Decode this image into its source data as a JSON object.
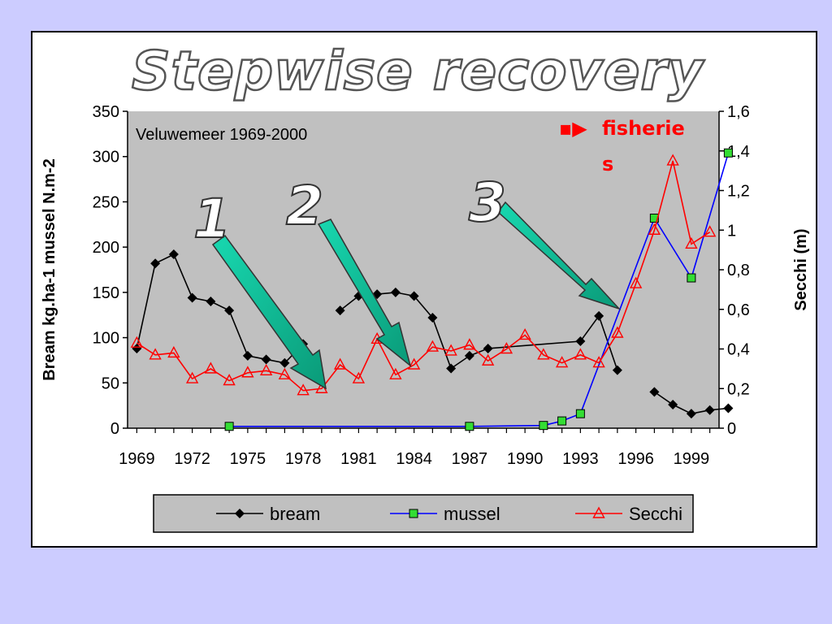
{
  "slide": {
    "title": "Stepwise recovery",
    "stages": [
      "1",
      "2",
      "3"
    ],
    "fisheries_marker": "▪▶",
    "fisheries_line1": "fisherie",
    "fisheries_line2": "s",
    "colors": {
      "background": "#ccccff",
      "arrow_fill": "#10c8a0"
    }
  },
  "chart_data": {
    "type": "line",
    "title": "",
    "annotation": "Veluwemeer  1969-2000",
    "ylabel": "Bream kg.ha-1 mussel N.m-2",
    "y2label": "Secchi  (m)",
    "ylim": [
      0,
      350
    ],
    "y2lim": [
      0,
      1.6
    ],
    "yticks": [
      "0",
      "50",
      "100",
      "150",
      "200",
      "250",
      "300",
      "350"
    ],
    "y2ticks": [
      "0",
      "0,2",
      "0,4",
      "0,6",
      "0,8",
      "1",
      "1,2",
      "1,4",
      "1,6"
    ],
    "xlim": [
      1968.5,
      2000.5
    ],
    "xticks": [
      "1969",
      "1972",
      "1975",
      "1978",
      "1981",
      "1984",
      "1987",
      "1990",
      "1993",
      "1996",
      "1999"
    ],
    "plot_background": "#c0c0c0",
    "grid": false,
    "legend_position": "bottom",
    "series": [
      {
        "name": "bream",
        "axis": "left",
        "color": "#000000",
        "marker": "diamond",
        "points": [
          [
            1969,
            88
          ],
          [
            1970,
            182
          ],
          [
            1971,
            192
          ],
          [
            1972,
            144
          ],
          [
            1973,
            140
          ],
          [
            1974,
            130
          ],
          [
            1975,
            80
          ],
          [
            1976,
            76
          ],
          [
            1977,
            72
          ],
          [
            1978,
            93
          ],
          [
            1979,
            null
          ],
          [
            1980,
            130
          ],
          [
            1981,
            146
          ],
          [
            1982,
            148
          ],
          [
            1983,
            150
          ],
          [
            1984,
            146
          ],
          [
            1985,
            122
          ],
          [
            1986,
            66
          ],
          [
            1987,
            80
          ],
          [
            1988,
            88
          ],
          [
            1993,
            96
          ],
          [
            1994,
            124
          ],
          [
            1995,
            64
          ],
          [
            1996,
            null
          ],
          [
            1997,
            40
          ],
          [
            1998,
            26
          ],
          [
            1999,
            16
          ],
          [
            2000,
            20
          ],
          [
            2001,
            22
          ]
        ]
      },
      {
        "name": "mussel",
        "axis": "left",
        "color": "#0000ff",
        "marker": "square",
        "marker_fill": "#33dd33",
        "points": [
          [
            1974,
            2
          ],
          [
            1987,
            2
          ],
          [
            1991,
            3
          ],
          [
            1992,
            8
          ],
          [
            1993,
            16
          ],
          [
            1997,
            232
          ],
          [
            1999,
            166
          ],
          [
            2001,
            304
          ]
        ]
      },
      {
        "name": "Secchi",
        "axis": "right",
        "color": "#ff0000",
        "marker": "triangle",
        "points": [
          [
            1969,
            0.43
          ],
          [
            1970,
            0.37
          ],
          [
            1971,
            0.38
          ],
          [
            1972,
            0.25
          ],
          [
            1973,
            0.3
          ],
          [
            1974,
            0.24
          ],
          [
            1975,
            0.28
          ],
          [
            1976,
            0.29
          ],
          [
            1977,
            0.27
          ],
          [
            1978,
            0.19
          ],
          [
            1979,
            0.2
          ],
          [
            1980,
            0.32
          ],
          [
            1981,
            0.25
          ],
          [
            1982,
            0.45
          ],
          [
            1983,
            0.27
          ],
          [
            1984,
            0.32
          ],
          [
            1985,
            0.41
          ],
          [
            1986,
            0.39
          ],
          [
            1987,
            0.42
          ],
          [
            1988,
            0.34
          ],
          [
            1989,
            0.4
          ],
          [
            1990,
            0.47
          ],
          [
            1991,
            0.37
          ],
          [
            1992,
            0.33
          ],
          [
            1993,
            0.37
          ],
          [
            1994,
            0.33
          ],
          [
            1995,
            0.48
          ],
          [
            1996,
            0.73
          ],
          [
            1997,
            1.0
          ],
          [
            1998,
            1.35
          ],
          [
            1999,
            0.93
          ],
          [
            2000,
            0.99
          ]
        ]
      }
    ]
  }
}
